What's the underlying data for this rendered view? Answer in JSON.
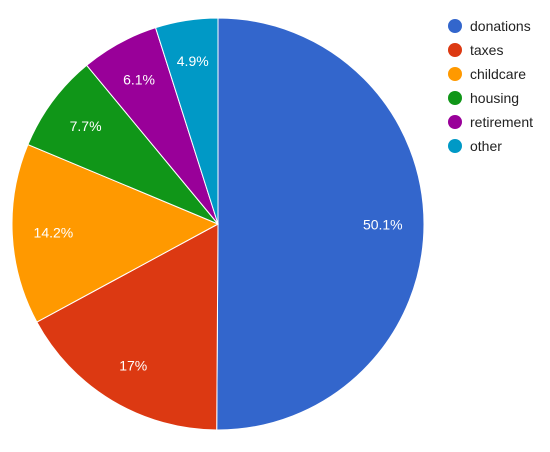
{
  "chart_data": {
    "type": "pie",
    "title": "",
    "legend_position": "right",
    "slices": [
      {
        "label": "donations",
        "value": 50.1,
        "display": "50.1%",
        "color": "#3366CC"
      },
      {
        "label": "taxes",
        "value": 17,
        "display": "17%",
        "color": "#DC3912"
      },
      {
        "label": "childcare",
        "value": 14.2,
        "display": "14.2%",
        "color": "#FF9900"
      },
      {
        "label": "housing",
        "value": 7.7,
        "display": "7.7%",
        "color": "#109618"
      },
      {
        "label": "retirement",
        "value": 6.1,
        "display": "6.1%",
        "color": "#990099"
      },
      {
        "label": "other",
        "value": 4.9,
        "display": "4.9%",
        "color": "#0099C6"
      }
    ]
  }
}
